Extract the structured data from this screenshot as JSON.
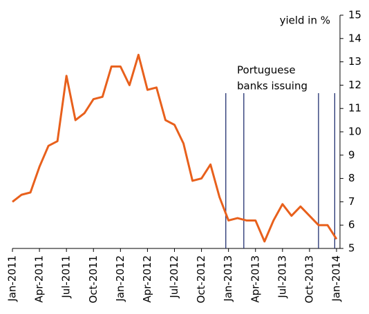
{
  "chart_data": {
    "type": "line",
    "y_axis_label": "yield in %",
    "annotation": [
      "Portuguese",
      "banks issuing"
    ],
    "x": [
      "Jan-2011",
      null,
      null,
      "Apr-2011",
      null,
      null,
      "Jul-2011",
      null,
      null,
      "Oct-2011",
      null,
      null,
      "Jan-2012",
      null,
      null,
      "Apr-2012",
      null,
      null,
      "Jul-2012",
      null,
      null,
      "Oct-2012",
      null,
      null,
      "Jan-2013",
      null,
      null,
      "Apr-2013",
      null,
      null,
      "Jul-2013",
      null,
      null,
      "Oct-2013",
      null,
      null,
      "Jan-2014"
    ],
    "series": [
      {
        "color": "#e8601c",
        "values": [
          7.0,
          7.3,
          7.4,
          8.5,
          9.4,
          9.6,
          12.4,
          10.5,
          10.8,
          11.4,
          11.5,
          12.8,
          12.8,
          12.0,
          13.3,
          11.8,
          11.9,
          10.5,
          10.3,
          9.5,
          7.9,
          8.0,
          8.6,
          7.2,
          6.2,
          6.3,
          6.2,
          6.2,
          5.3,
          6.2,
          6.9,
          6.4,
          6.8,
          6.4,
          6.0,
          6.0,
          5.4
        ]
      }
    ],
    "event_lines": [
      23.7,
      25.7,
      34.0,
      35.8
    ],
    "event_line_color": "#1f2d6e",
    "ylim": [
      5,
      15
    ],
    "yticks": [
      5,
      6,
      7,
      8,
      9,
      10,
      11,
      12,
      13,
      14,
      15
    ]
  }
}
